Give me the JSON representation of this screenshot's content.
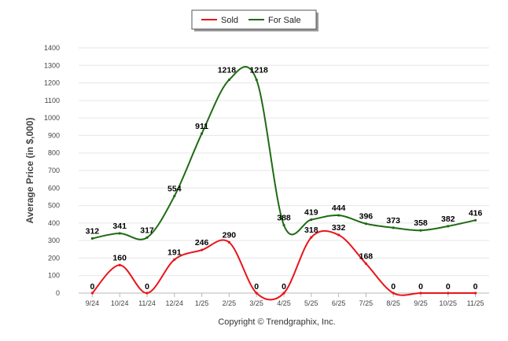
{
  "chart_data": {
    "type": "line",
    "categories": [
      "9/24",
      "10/24",
      "11/24",
      "12/24",
      "1/25",
      "2/25",
      "3/25",
      "4/25",
      "5/25",
      "6/25",
      "7/25",
      "8/25",
      "9/25",
      "10/25",
      "11/25"
    ],
    "series": [
      {
        "name": "Sold",
        "color": "#e8141a",
        "values": [
          0,
          160,
          0,
          191,
          246,
          290,
          0,
          0,
          318,
          332,
          168,
          0,
          0,
          0,
          0
        ]
      },
      {
        "name": "For Sale",
        "color": "#1e6b12",
        "values": [
          312,
          341,
          317,
          554,
          911,
          1218,
          1218,
          388,
          419,
          444,
          396,
          373,
          358,
          382,
          416
        ]
      }
    ],
    "ylabel": "Average Price (in $,000)",
    "ylim": [
      0,
      1400
    ],
    "yticks": [
      0,
      100,
      200,
      300,
      400,
      500,
      600,
      700,
      800,
      900,
      1000,
      1100,
      1200,
      1300,
      1400
    ],
    "grid": true,
    "legend_position": "top-center"
  },
  "footer": {
    "credit": "Copyright © Trendgraphix, Inc."
  }
}
